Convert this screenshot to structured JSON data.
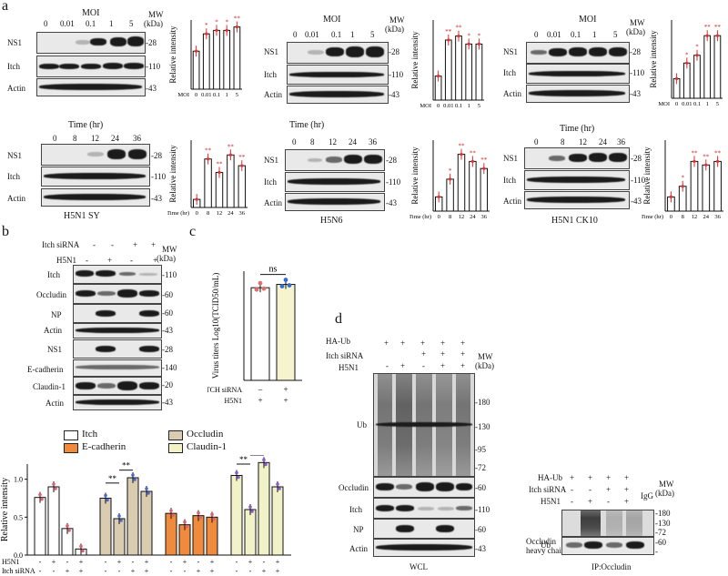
{
  "panels": {
    "a": "a",
    "b": "b",
    "c": "c",
    "d": "d"
  },
  "panel_a": {
    "moi_header": "MOI",
    "moi_values": [
      "0",
      "0.01",
      "0.1",
      "1",
      "5"
    ],
    "mw_label": "MW",
    "kda_label": "(kDa)",
    "time_header": "Time (hr)",
    "time_values": [
      "0",
      "8",
      "12",
      "24",
      "36"
    ],
    "row_labels": [
      "NS1",
      "Itch",
      "Actin"
    ],
    "mw_markers": [
      "-28",
      "-110",
      "-43"
    ],
    "strains": [
      "H5N1 SY",
      "H5N6",
      "H5N1 CK10"
    ],
    "ylabel": "Relative intensity",
    "moi_axis_label": "MOI",
    "time_axis_label": "Time (hr)"
  },
  "panel_b": {
    "header_rows": [
      {
        "label": "Itch siRNA",
        "signs": [
          "-",
          "-",
          "+",
          "+"
        ]
      },
      {
        "label": "H5N1",
        "signs": [
          "-",
          "+",
          "-",
          "+"
        ]
      }
    ],
    "mw_label": "MW",
    "kda_label": "(kDa)",
    "rows": [
      {
        "label": "Itch",
        "mw": "-110"
      },
      {
        "label": "Occludin",
        "mw": "-60"
      },
      {
        "label": "NP",
        "mw": "-60"
      },
      {
        "label": "Actin",
        "mw": "-43"
      },
      {
        "label": "NS1",
        "mw": "-28"
      },
      {
        "label": "E-cadherin",
        "mw": "-140"
      },
      {
        "label": "Claudin-1",
        "mw": "-20"
      },
      {
        "label": "Actin",
        "mw": "-43"
      }
    ],
    "legend": [
      "Itch",
      "E-cadherin",
      "Occludin",
      "Claudin-1"
    ],
    "ylabel": "Relative intensity",
    "row_h5n1": {
      "label": "H5N1",
      "signs": [
        "-",
        "+",
        "-",
        "+"
      ]
    },
    "row_sirna": {
      "label": "Itch siRNA",
      "signs": [
        "-",
        "-",
        "+",
        "+"
      ]
    },
    "sig": [
      "**",
      "**",
      "**",
      "**"
    ]
  },
  "panel_c": {
    "ylabel": "Virus titers Log10(TCID50/mL)",
    "ns": "ns",
    "row1": {
      "label": "ITCH siRNA",
      "signs": [
        "–",
        "+"
      ]
    },
    "row2": {
      "label": "H5N1",
      "signs": [
        "+",
        "+"
      ]
    }
  },
  "panel_d": {
    "header_rows": [
      {
        "label": "HA-Ub",
        "signs": [
          "+",
          "+",
          "+",
          "+",
          "+"
        ]
      },
      {
        "label": "Itch siRNA",
        "signs": [
          "",
          "",
          "+",
          "+",
          "+"
        ]
      },
      {
        "label": "H5N1",
        "signs": [
          "-",
          "+",
          "-",
          "+",
          "+"
        ]
      }
    ],
    "mw_label": "MW",
    "kda_label": "(kDa)",
    "wcl_rows": [
      "Ub",
      "Occludin",
      "Itch",
      "NP",
      "Actin"
    ],
    "wcl_mw": [
      "-180",
      "-130",
      "-95",
      "-72",
      "-60",
      "-110",
      "-60",
      "-43"
    ],
    "wcl_caption": "WCL",
    "ip_header_rows": [
      {
        "label": "HA-Ub",
        "signs": [
          "+",
          "+",
          "+",
          "+"
        ]
      },
      {
        "label": "Itch siRNA",
        "signs": [
          "-",
          "-",
          "+",
          "+"
        ]
      },
      {
        "label": "H5N1",
        "signs": [
          "-",
          "+",
          "-",
          "+"
        ]
      }
    ],
    "igg": "IgG",
    "ip_rows": [
      "Ub",
      "Occludin",
      "heavy chain"
    ],
    "ip_mw": [
      "-180",
      "-130",
      "-95",
      "-72",
      "-60",
      "-"
    ],
    "ip_caption": "IP:Occludin"
  },
  "chart_data": [
    {
      "type": "bar",
      "panel": "a-SY-MOI",
      "categories": [
        "0",
        "0.01",
        "0.1",
        "1",
        "5"
      ],
      "values": [
        0.55,
        0.8,
        0.85,
        0.85,
        0.9
      ],
      "ylim": [
        0,
        1.0
      ],
      "sig": [
        "",
        "*",
        "*",
        "*",
        "**"
      ]
    },
    {
      "type": "bar",
      "panel": "a-H5N6-MOI",
      "categories": [
        "0",
        "0.01",
        "0.1",
        "1",
        "5"
      ],
      "values": [
        0.3,
        0.75,
        0.8,
        0.7,
        0.7
      ],
      "ylim": [
        0,
        1.0
      ],
      "sig": [
        "",
        "**",
        "**",
        "*",
        "*"
      ]
    },
    {
      "type": "bar",
      "panel": "a-CK10-MOI",
      "categories": [
        "0",
        "0.01",
        "0.1",
        "1",
        "5"
      ],
      "values": [
        0.25,
        0.45,
        0.55,
        0.8,
        0.8
      ],
      "ylim": [
        0,
        1.0
      ],
      "sig": [
        "",
        "*",
        "*",
        "**",
        "**"
      ]
    },
    {
      "type": "bar",
      "panel": "a-SY-time",
      "categories": [
        "0",
        "8",
        "12",
        "24",
        "36"
      ],
      "values": [
        0.12,
        0.72,
        0.52,
        0.78,
        0.62
      ],
      "ylim": [
        0,
        1.0
      ],
      "sig": [
        "",
        "**",
        "**",
        "**",
        "**"
      ]
    },
    {
      "type": "bar",
      "panel": "a-H5N6-time",
      "categories": [
        "0",
        "8",
        "12",
        "24",
        "36"
      ],
      "values": [
        0.2,
        0.45,
        0.8,
        0.7,
        0.6
      ],
      "ylim": [
        0,
        1.0
      ],
      "sig": [
        "",
        "*",
        "**",
        "**",
        "**"
      ]
    },
    {
      "type": "bar",
      "panel": "a-CK10-time",
      "categories": [
        "0",
        "8",
        "12",
        "24",
        "36"
      ],
      "values": [
        0.2,
        0.35,
        0.7,
        0.65,
        0.7
      ],
      "ylim": [
        0,
        1.0
      ],
      "sig": [
        "",
        "*",
        "**",
        "**",
        "**"
      ]
    },
    {
      "type": "bar",
      "panel": "b",
      "ylabel": "Relative intensity",
      "ylim": [
        0,
        1.2
      ],
      "yticks": [
        "0.0",
        "0.5",
        "1.0"
      ],
      "groups": [
        {
          "name": "Itch",
          "color": "#ffffff",
          "values": [
            0.76,
            0.9,
            0.35,
            0.08
          ]
        },
        {
          "name": "Occludin",
          "color": "#d9ccb0",
          "values": [
            0.75,
            0.48,
            1.02,
            0.84
          ]
        },
        {
          "name": "E-cadherin",
          "color": "#f08a3c",
          "values": [
            0.55,
            0.4,
            0.52,
            0.5
          ]
        },
        {
          "name": "Claudin-1",
          "color": "#f2f2c8",
          "values": [
            1.05,
            0.6,
            1.22,
            0.9
          ]
        }
      ]
    },
    {
      "type": "bar",
      "panel": "c",
      "categories": [
        "1",
        "2"
      ],
      "values": [
        5.6,
        5.8
      ],
      "colors": [
        "#ffffff",
        "#f6f4cf"
      ]
    }
  ]
}
